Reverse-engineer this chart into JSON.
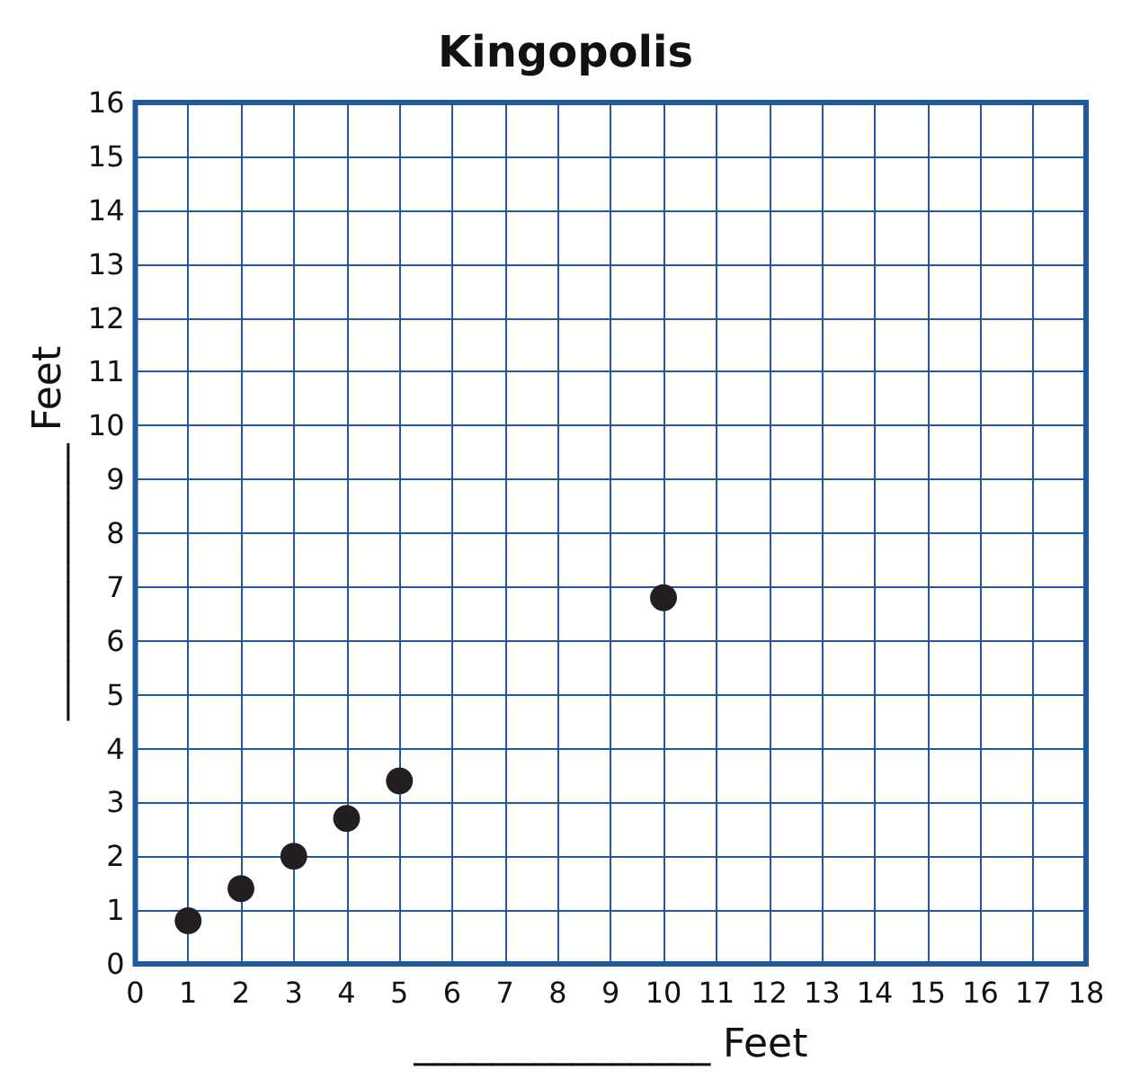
{
  "chart_data": {
    "type": "scatter",
    "title": "Kingopolis",
    "xlabel": "_______________ Feet",
    "ylabel": "______________ Feet",
    "x": [
      1,
      2,
      3,
      4,
      5,
      10
    ],
    "series": [
      {
        "color": "#231f20",
        "values": [
          0.8,
          1.4,
          2.0,
          2.7,
          3.4,
          6.8
        ]
      }
    ],
    "xlim": [
      0,
      18
    ],
    "xticks": [
      0,
      1,
      2,
      3,
      4,
      5,
      6,
      7,
      8,
      9,
      10,
      11,
      12,
      13,
      14,
      15,
      16,
      17,
      18
    ],
    "ylim": [
      0,
      16
    ],
    "yticks": [
      0,
      1,
      2,
      3,
      4,
      5,
      6,
      7,
      8,
      9,
      10,
      11,
      12,
      13,
      14,
      15,
      16
    ],
    "grid": true,
    "marker": "circle"
  }
}
